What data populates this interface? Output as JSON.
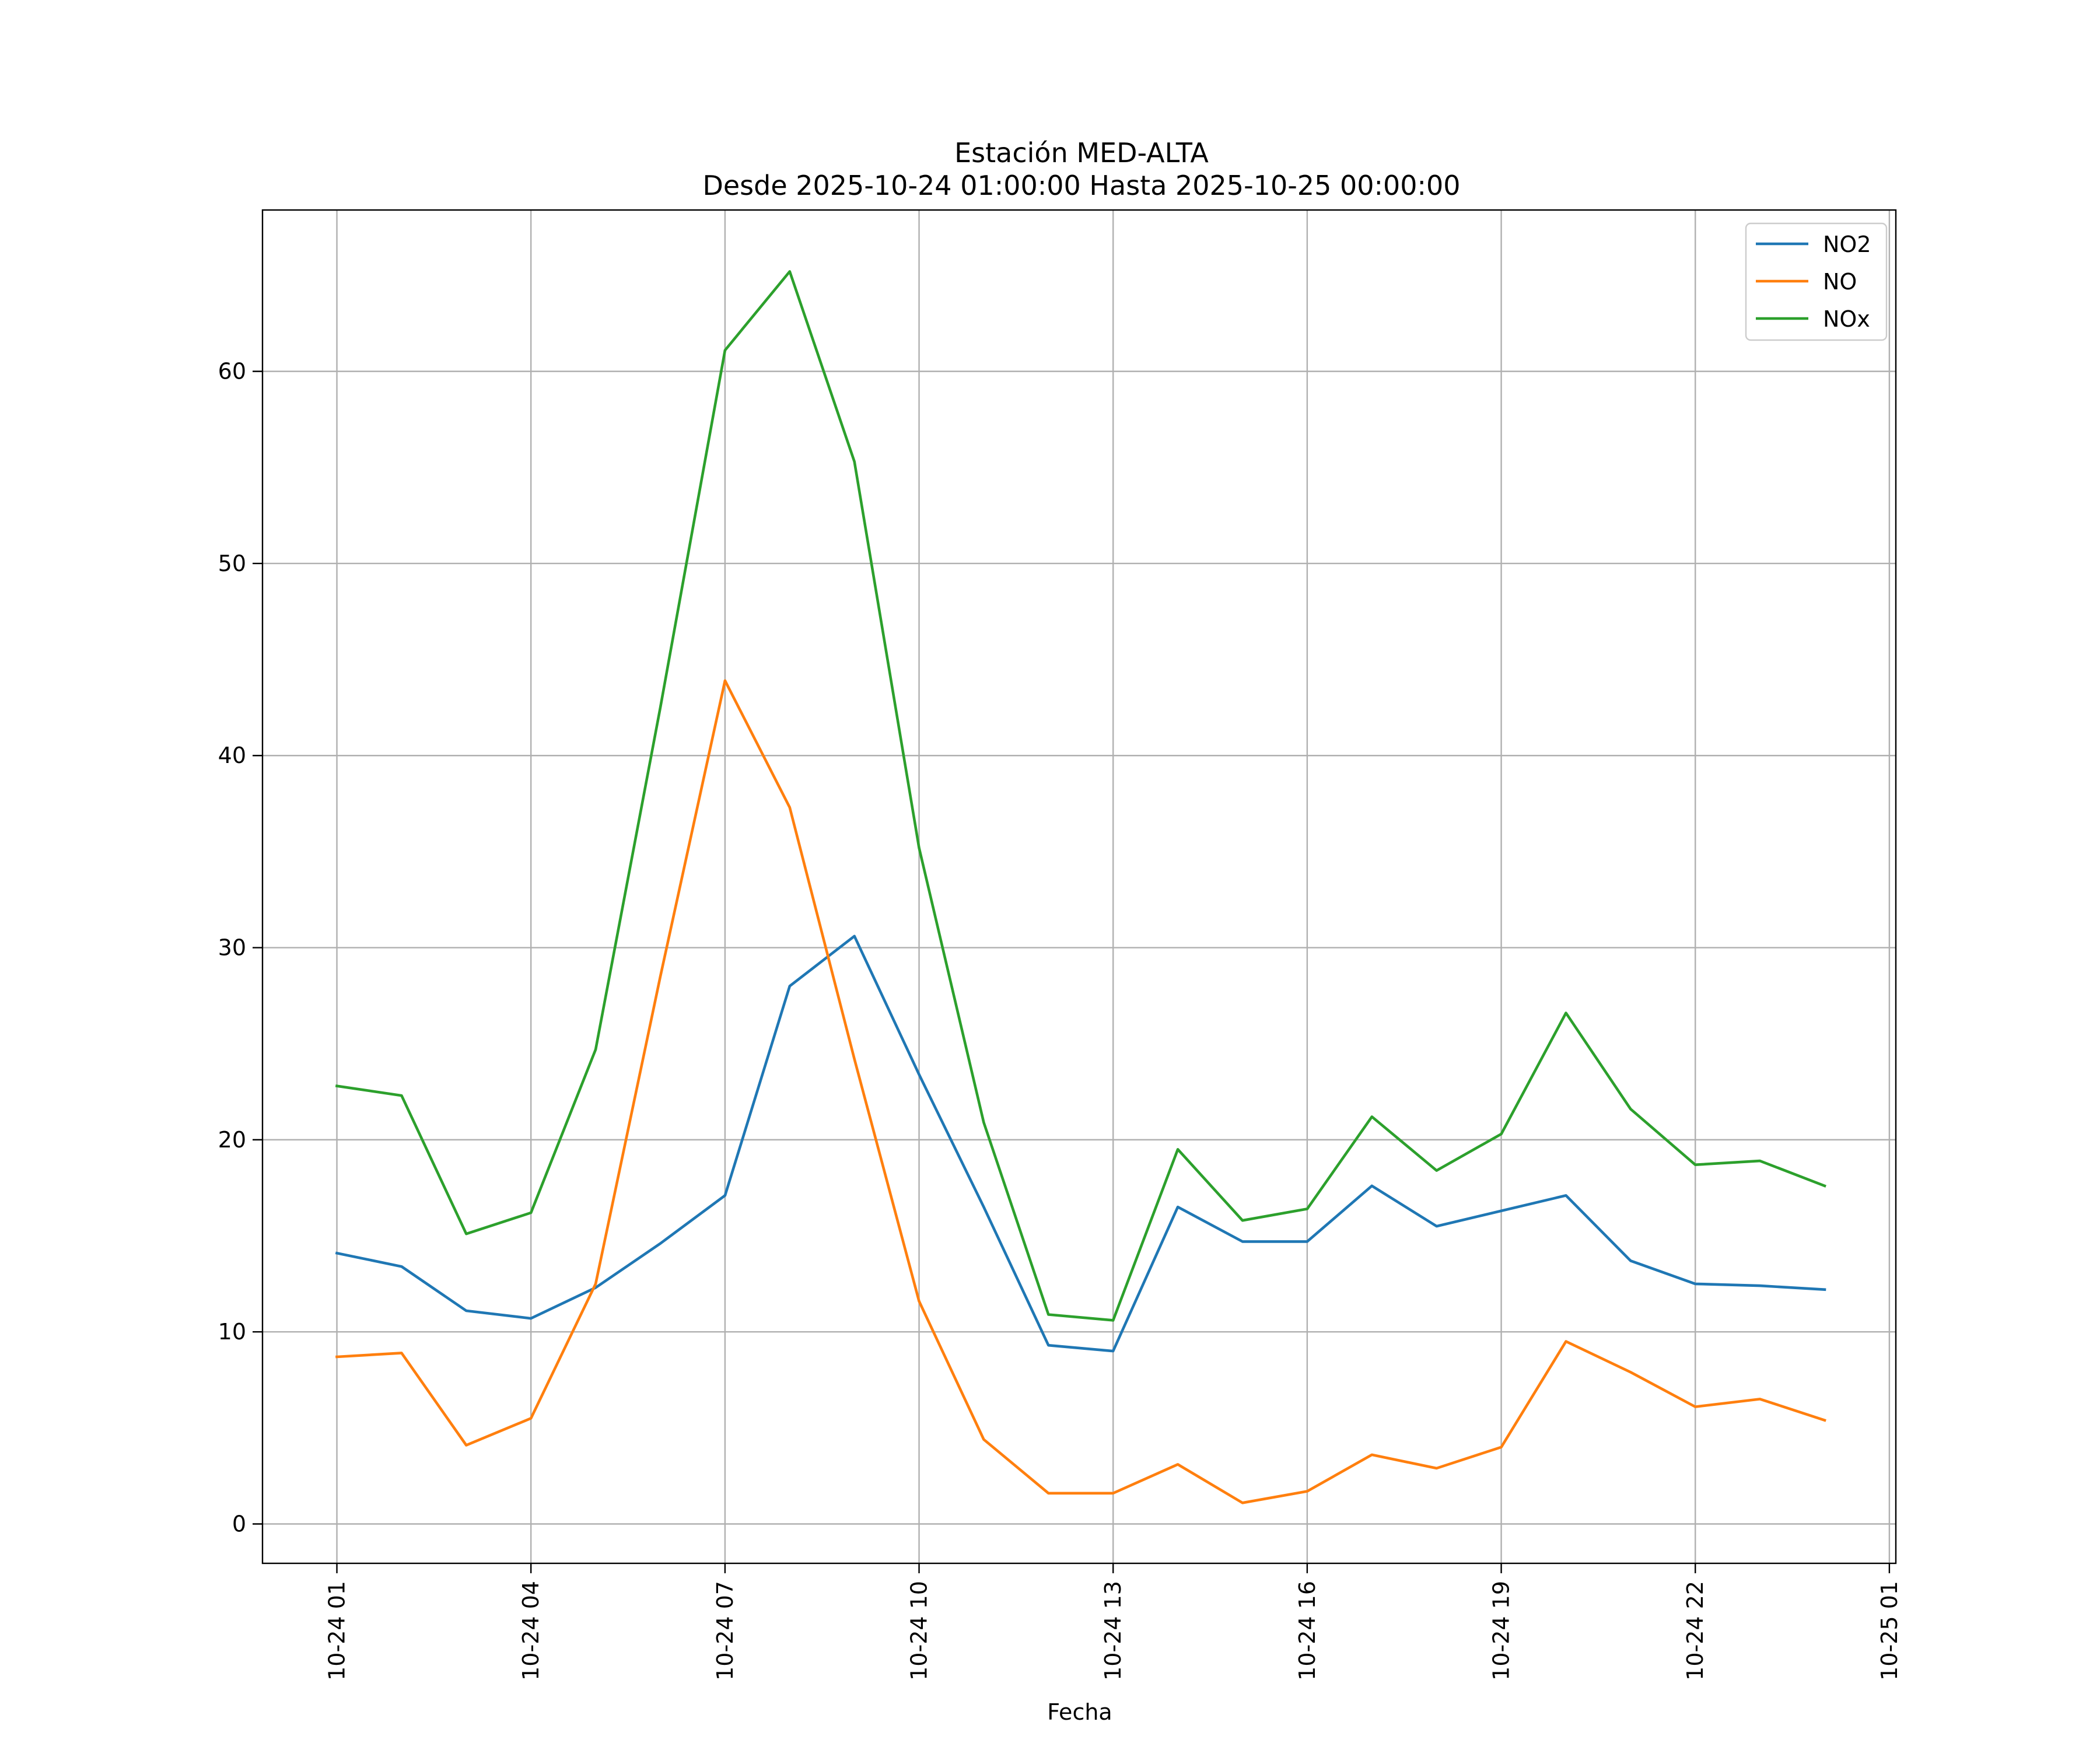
{
  "chart_data": {
    "type": "line",
    "title_line1": "Estación MED-ALTA",
    "title_line2": "Desde 2025-10-24 01:00:00 Hasta 2025-10-25 00:00:00",
    "xlabel": "Fecha",
    "ylabel": "",
    "grid": true,
    "legend_position": "top-right",
    "x_hours": [
      1,
      2,
      3,
      4,
      5,
      6,
      7,
      8,
      9,
      10,
      11,
      12,
      13,
      14,
      15,
      16,
      17,
      18,
      19,
      20,
      21,
      22,
      23,
      24
    ],
    "x_tick_hours": [
      1,
      4,
      7,
      10,
      13,
      16,
      19,
      22,
      25
    ],
    "x_tick_labels": [
      "10-24 01",
      "10-24 04",
      "10-24 07",
      "10-24 10",
      "10-24 13",
      "10-24 16",
      "10-24 19",
      "10-24 22",
      "10-25 01"
    ],
    "xlim": [
      -0.15,
      25.1
    ],
    "y_ticks": [
      0,
      10,
      20,
      30,
      40,
      50,
      60
    ],
    "y_tick_labels": [
      "0",
      "10",
      "20",
      "30",
      "40",
      "50",
      "60"
    ],
    "ylim": [
      -2.05,
      68.4
    ],
    "series": [
      {
        "name": "NO2",
        "color": "#1f77b4",
        "values": [
          14.1,
          13.4,
          11.1,
          10.7,
          12.3,
          14.6,
          17.1,
          28.0,
          30.6,
          23.4,
          16.5,
          9.3,
          9.0,
          16.5,
          14.7,
          14.7,
          17.6,
          15.5,
          16.3,
          17.1,
          13.7,
          12.5,
          12.4,
          12.2
        ]
      },
      {
        "name": "NO",
        "color": "#ff7f0e",
        "values": [
          8.7,
          8.9,
          4.1,
          5.5,
          12.5,
          28.5,
          43.9,
          37.3,
          24.2,
          11.6,
          4.4,
          1.6,
          1.6,
          3.1,
          1.1,
          1.7,
          3.6,
          2.9,
          4.0,
          9.5,
          7.9,
          6.1,
          6.5,
          5.4
        ]
      },
      {
        "name": "NOx",
        "color": "#2ca02c",
        "values": [
          22.8,
          22.3,
          15.1,
          16.2,
          24.7,
          42.5,
          61.1,
          65.2,
          55.3,
          35.2,
          20.9,
          10.9,
          10.6,
          19.5,
          15.8,
          16.4,
          21.2,
          18.4,
          20.3,
          26.6,
          21.6,
          18.7,
          18.9,
          17.6
        ]
      }
    ]
  }
}
